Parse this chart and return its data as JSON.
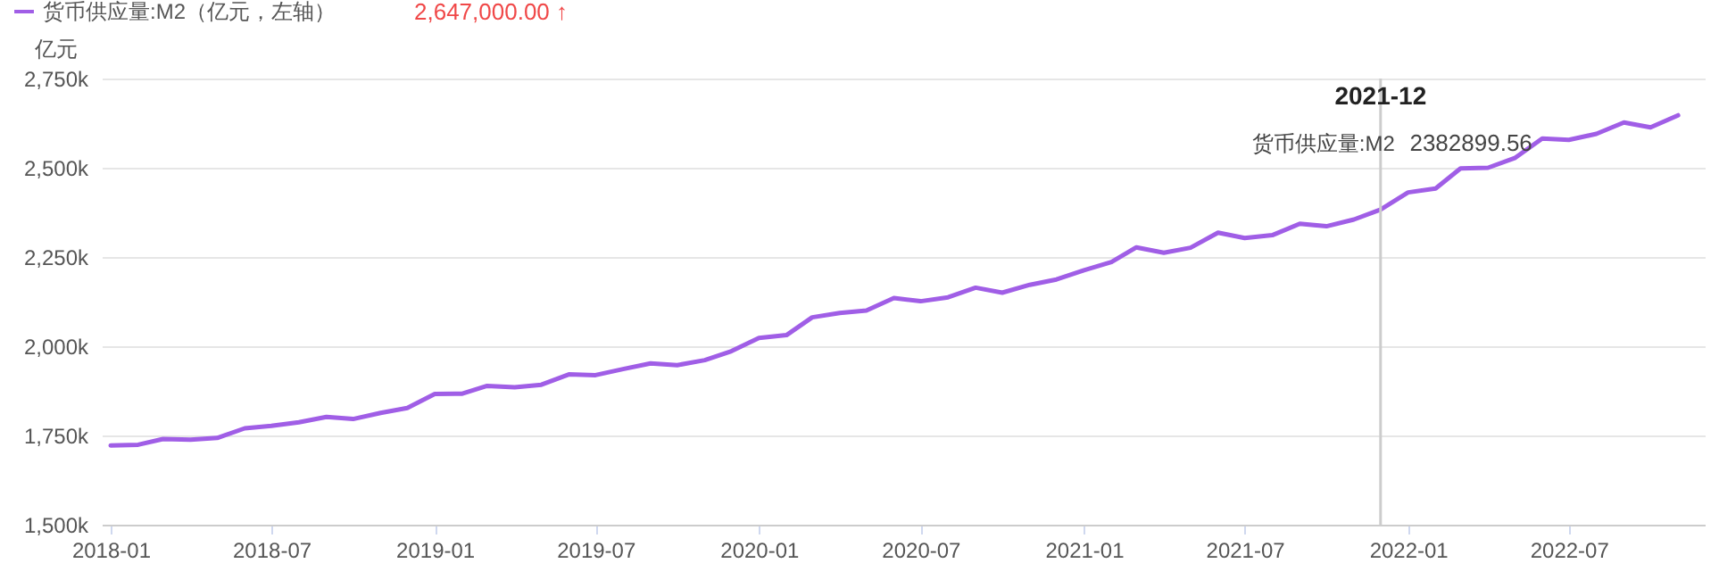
{
  "chart_data": {
    "type": "line",
    "ylabel": "亿元",
    "legend": "top left",
    "grid": "y",
    "marker": "none",
    "line_style": "solid",
    "x": [
      "2018-01",
      "2018-02",
      "2018-03",
      "2018-04",
      "2018-05",
      "2018-06",
      "2018-07",
      "2018-08",
      "2018-09",
      "2018-10",
      "2018-11",
      "2018-12",
      "2019-01",
      "2019-02",
      "2019-03",
      "2019-04",
      "2019-05",
      "2019-06",
      "2019-07",
      "2019-08",
      "2019-09",
      "2019-10",
      "2019-11",
      "2019-12",
      "2020-01",
      "2020-02",
      "2020-03",
      "2020-04",
      "2020-05",
      "2020-06",
      "2020-07",
      "2020-08",
      "2020-09",
      "2020-10",
      "2020-11",
      "2020-12",
      "2021-01",
      "2021-02",
      "2021-03",
      "2021-04",
      "2021-05",
      "2021-06",
      "2021-07",
      "2021-08",
      "2021-09",
      "2021-10",
      "2021-11",
      "2021-12",
      "2022-01",
      "2022-02",
      "2022-03",
      "2022-04",
      "2022-05",
      "2022-06",
      "2022-07",
      "2022-08",
      "2022-09",
      "2022-10",
      "2022-11"
    ],
    "series": [
      {
        "name": "货币供应量:M2（亿元，左轴）",
        "color": "#a05ee6",
        "values": [
          1722000,
          1724000,
          1740000,
          1738000,
          1743000,
          1770000,
          1777000,
          1787000,
          1802000,
          1796000,
          1813000,
          1827000,
          1866000,
          1867000,
          1889000,
          1885000,
          1892000,
          1921000,
          1919000,
          1936000,
          1952000,
          1947000,
          1961000,
          1986000,
          2023000,
          2031000,
          2081000,
          2093000,
          2100000,
          2135000,
          2126000,
          2137000,
          2164000,
          2150000,
          2172000,
          2187000,
          2213000,
          2236000,
          2277000,
          2262000,
          2276000,
          2318000,
          2303000,
          2311000,
          2343000,
          2336000,
          2355000,
          2382899.56,
          2431000,
          2442000,
          2498000,
          2500000,
          2527000,
          2582000,
          2578000,
          2595000,
          2627000,
          2613000,
          2647000
        ]
      }
    ],
    "xlim": [
      "2017-12-22",
      "2022-12-01"
    ],
    "xticks": [
      "2018-01",
      "2018-07",
      "2019-01",
      "2019-07",
      "2020-01",
      "2020-07",
      "2021-01",
      "2021-07",
      "2022-01",
      "2022-07"
    ],
    "ylim": [
      1500000,
      2750000
    ],
    "yticks": [
      {
        "value": 1500000,
        "label": "1,500k"
      },
      {
        "value": 1750000,
        "label": "1,750k"
      },
      {
        "value": 2000000,
        "label": "2,000k"
      },
      {
        "value": 2250000,
        "label": "2,250k"
      },
      {
        "value": 2500000,
        "label": "2,500k"
      },
      {
        "value": 2750000,
        "label": "2,750k"
      }
    ],
    "ref_lines": [
      {
        "axis": "x",
        "value": "2021-12",
        "color": "#cccccc"
      }
    ],
    "annotations": [
      "2,647,000.00 ↑",
      "2021-12",
      {
        "text": "货币供应量:M2",
        "x": "2021-12",
        "y": 2382899.56
      },
      {
        "text": "2382899.56",
        "x": "2021-12",
        "y": 2382899.56
      }
    ]
  }
}
